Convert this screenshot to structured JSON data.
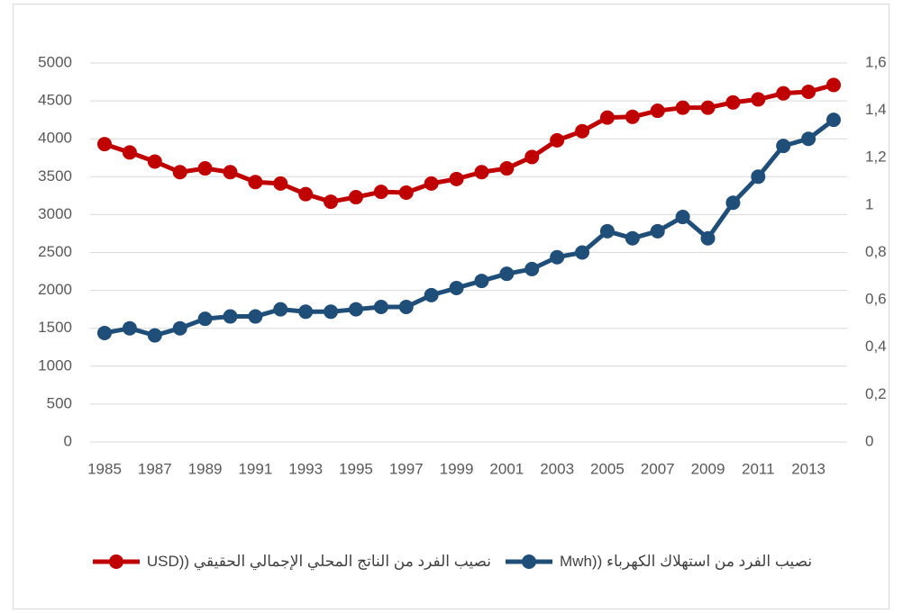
{
  "chart_data": {
    "type": "line",
    "categories": [
      "1985",
      null,
      "1987",
      null,
      "1989",
      null,
      "1991",
      null,
      "1993",
      null,
      "1995",
      null,
      "1997",
      null,
      "1999",
      null,
      "2001",
      null,
      "2003",
      null,
      "2005",
      null,
      "2007",
      null,
      "2009",
      null,
      "2011",
      null,
      "2013",
      null
    ],
    "series": [
      {
        "name": "نصيب الفرد من استهلاك الكهرباء ((Mwh",
        "color": "#1f4e79",
        "axis": "y2",
        "values": [
          0.46,
          0.48,
          0.45,
          0.48,
          0.52,
          0.53,
          0.53,
          0.56,
          0.55,
          0.55,
          0.56,
          0.57,
          0.57,
          0.62,
          0.65,
          0.68,
          0.71,
          0.73,
          0.78,
          0.8,
          0.89,
          0.86,
          0.89,
          0.95,
          0.86,
          1.01,
          1.12,
          1.25,
          1.28,
          1.36
        ]
      },
      {
        "name": "نصيب الفرد من الناتج المحلي الإجمالي الحقيقي ((USD",
        "color": "#c00000",
        "values": [
          3930,
          3820,
          3700,
          3560,
          3610,
          3560,
          3430,
          3410,
          3270,
          3170,
          3230,
          3300,
          3290,
          3410,
          3470,
          3560,
          3610,
          3760,
          3980,
          4100,
          4280,
          4290,
          4370,
          4410,
          4410,
          4480,
          4520,
          4600,
          4620,
          4710
        ]
      }
    ],
    "ylim": [
      0,
      5000
    ],
    "yticks": [
      0,
      500,
      1000,
      1500,
      2000,
      2500,
      3000,
      3500,
      4000,
      4500,
      5000
    ],
    "y2lim": [
      0,
      1.6
    ],
    "y2ticks": [
      0,
      {
        "value": 0.2,
        "label": "0,2"
      },
      {
        "value": 0.4,
        "label": "0,4"
      },
      {
        "value": 0.6,
        "label": "0,6"
      },
      {
        "value": 0.8,
        "label": "0,8"
      },
      1,
      {
        "value": 1.2,
        "label": "1,2"
      },
      {
        "value": 1.4,
        "label": "1,4"
      },
      {
        "value": 1.6,
        "label": "1,6"
      }
    ],
    "grid": true,
    "legend": "bottom"
  }
}
